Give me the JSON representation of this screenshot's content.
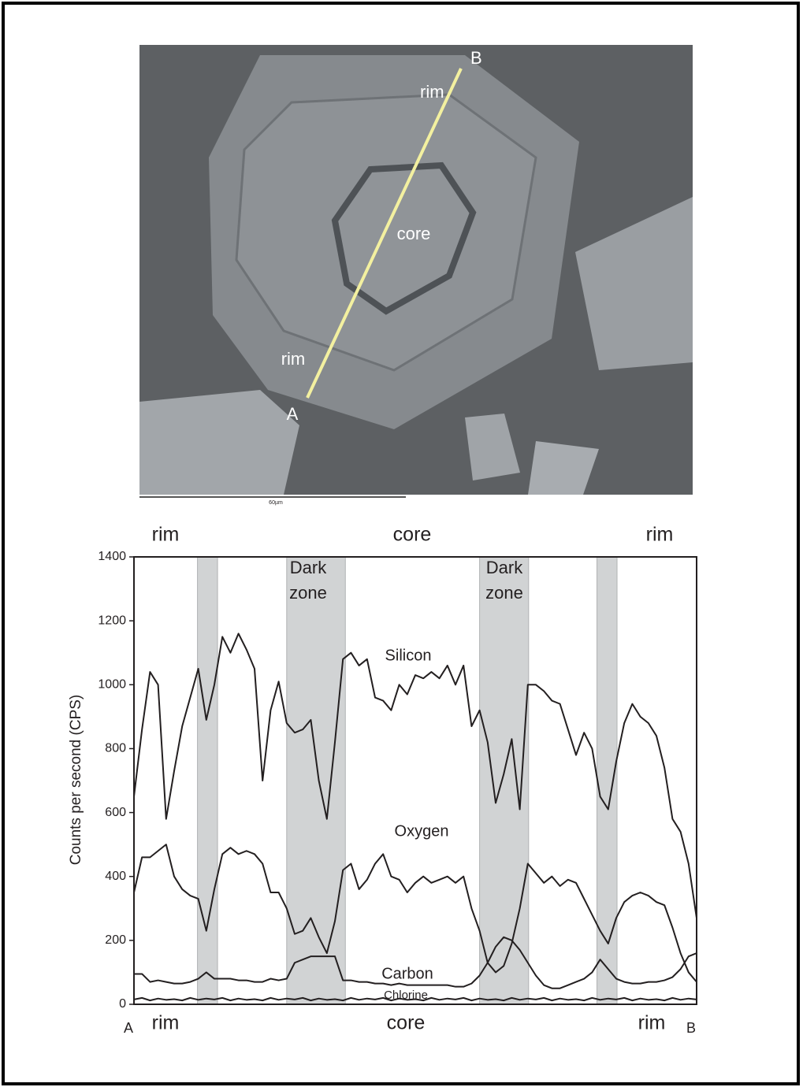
{
  "image": {
    "labels": [
      "B",
      "rim",
      "core",
      "rim",
      "A"
    ],
    "scale_bar": "60µm"
  },
  "chart_data": {
    "type": "line",
    "top_labels": [
      "rim",
      "core",
      "rim"
    ],
    "bottom_labels": [
      "A",
      "rim",
      "core",
      "rim",
      "B"
    ],
    "ylabel": "Counts per second (CPS)",
    "annotations": [
      [
        "Dark",
        "zone"
      ],
      [
        "Dark",
        "zone"
      ]
    ],
    "shaded_regions": [
      [
        7.9,
        10.4
      ],
      [
        19,
        26.3
      ],
      [
        43,
        49.1
      ],
      [
        57.6,
        60.1
      ]
    ],
    "shade_color": "#d1d3d4",
    "x": [
      0,
      1,
      2,
      3,
      4,
      5,
      6,
      7,
      8,
      9,
      10,
      11,
      12,
      13,
      14,
      15,
      16,
      17,
      18,
      19,
      20,
      21,
      22,
      23,
      24,
      25,
      26,
      27,
      28,
      29,
      30,
      31,
      32,
      33,
      34,
      35,
      36,
      37,
      38,
      39,
      40,
      41,
      42,
      43,
      44,
      45,
      46,
      47,
      48,
      49,
      50,
      51,
      52,
      53,
      54,
      55,
      56,
      57,
      58,
      59,
      60,
      61,
      62,
      63,
      64,
      65,
      66,
      67,
      68,
      69,
      70
    ],
    "xlim": [
      0,
      70
    ],
    "ylim": [
      0,
      1400
    ],
    "yticks": [
      0,
      200,
      400,
      600,
      800,
      1000,
      1200,
      1400
    ],
    "series": [
      {
        "name": "Silicon",
        "color": "#231f20",
        "values": [
          650,
          860,
          1040,
          1000,
          580,
          730,
          870,
          960,
          1050,
          890,
          1000,
          1150,
          1100,
          1160,
          1110,
          1050,
          700,
          920,
          1010,
          880,
          850,
          860,
          890,
          700,
          580,
          820,
          1080,
          1100,
          1060,
          1080,
          960,
          950,
          920,
          1000,
          970,
          1030,
          1020,
          1040,
          1020,
          1060,
          1000,
          1060,
          870,
          920,
          820,
          630,
          720,
          830,
          610,
          1000,
          1000,
          980,
          950,
          940,
          860,
          780,
          850,
          800,
          650,
          610,
          760,
          880,
          940,
          900,
          880,
          840,
          740,
          580,
          540,
          440,
          270
        ]
      },
      {
        "name": "Oxygen",
        "color": "#231f20",
        "values": [
          350,
          460,
          460,
          480,
          500,
          400,
          360,
          340,
          330,
          230,
          360,
          470,
          490,
          470,
          480,
          470,
          440,
          350,
          350,
          300,
          220,
          230,
          270,
          210,
          160,
          260,
          420,
          440,
          360,
          390,
          440,
          470,
          400,
          390,
          350,
          380,
          400,
          380,
          390,
          400,
          380,
          400,
          300,
          230,
          130,
          100,
          120,
          190,
          300,
          440,
          410,
          380,
          400,
          370,
          390,
          380,
          330,
          280,
          230,
          190,
          270,
          320,
          340,
          350,
          340,
          320,
          310,
          240,
          160,
          100,
          70
        ]
      },
      {
        "name": "Carbon",
        "color": "#231f20",
        "values": [
          95,
          95,
          70,
          75,
          70,
          65,
          65,
          70,
          80,
          100,
          80,
          80,
          80,
          75,
          75,
          70,
          70,
          80,
          75,
          80,
          130,
          140,
          150,
          150,
          150,
          150,
          75,
          75,
          70,
          70,
          65,
          65,
          60,
          65,
          60,
          60,
          60,
          60,
          60,
          60,
          55,
          55,
          65,
          90,
          130,
          180,
          210,
          200,
          170,
          130,
          90,
          60,
          50,
          50,
          60,
          70,
          80,
          100,
          140,
          110,
          80,
          70,
          65,
          65,
          70,
          70,
          75,
          85,
          110,
          150,
          160
        ]
      },
      {
        "name": "Chlorine",
        "color": "#231f20",
        "values": [
          15,
          20,
          12,
          18,
          14,
          16,
          12,
          20,
          14,
          18,
          15,
          20,
          12,
          18,
          14,
          16,
          12,
          20,
          14,
          18,
          15,
          20,
          12,
          18,
          14,
          16,
          12,
          20,
          14,
          18,
          15,
          20,
          12,
          18,
          14,
          16,
          12,
          20,
          14,
          18,
          15,
          20,
          12,
          18,
          14,
          16,
          12,
          20,
          14,
          18,
          15,
          20,
          12,
          18,
          14,
          16,
          12,
          20,
          14,
          18,
          15,
          20,
          12,
          18,
          14,
          16,
          12,
          20,
          14,
          18,
          15
        ]
      }
    ]
  }
}
